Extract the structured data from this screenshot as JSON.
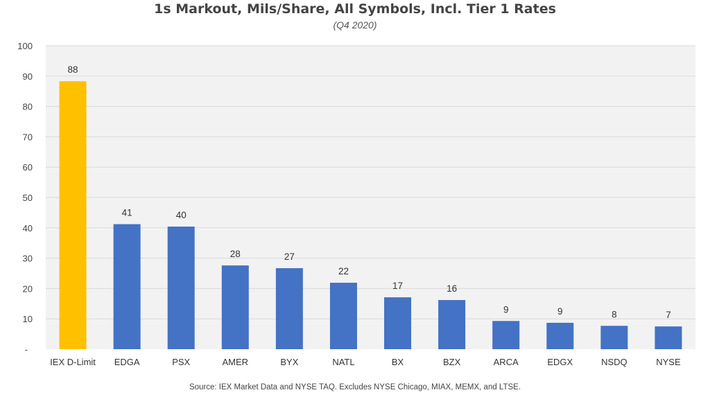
{
  "chart_data": {
    "type": "bar",
    "title": "1s Markout, Mils/Share, All Symbols, Incl. Tier 1 Rates",
    "subtitle": "(Q4 2020)",
    "categories": [
      "IEX D-Limit",
      "EDGA",
      "PSX",
      "AMER",
      "BYX",
      "NATL",
      "BX",
      "BZX",
      "ARCA",
      "EDGX",
      "NSDQ",
      "NYSE"
    ],
    "values": [
      88,
      41,
      40,
      28,
      27,
      22,
      17,
      16,
      9,
      9,
      8,
      7
    ],
    "plotted_values": [
      88.3,
      41.2,
      40.4,
      27.6,
      26.7,
      21.9,
      17.1,
      16.2,
      9.3,
      8.7,
      7.7,
      7.5
    ],
    "highlight_category": "IEX D-Limit",
    "y_ticks": [
      "-",
      "10",
      "20",
      "30",
      "40",
      "50",
      "60",
      "70",
      "80",
      "90",
      "100"
    ],
    "ylim": [
      0,
      100
    ],
    "grid": true,
    "colors": {
      "highlight": "#FFC000",
      "bar": "#4472C4",
      "plot_background": "#F2F2F2",
      "grid": "#D9D9D9"
    },
    "xlabel": "",
    "ylabel": ""
  },
  "source": "Source: IEX Market Data and NYSE TAQ. Excludes NYSE Chicago, MIAX, MEMX, and LTSE."
}
